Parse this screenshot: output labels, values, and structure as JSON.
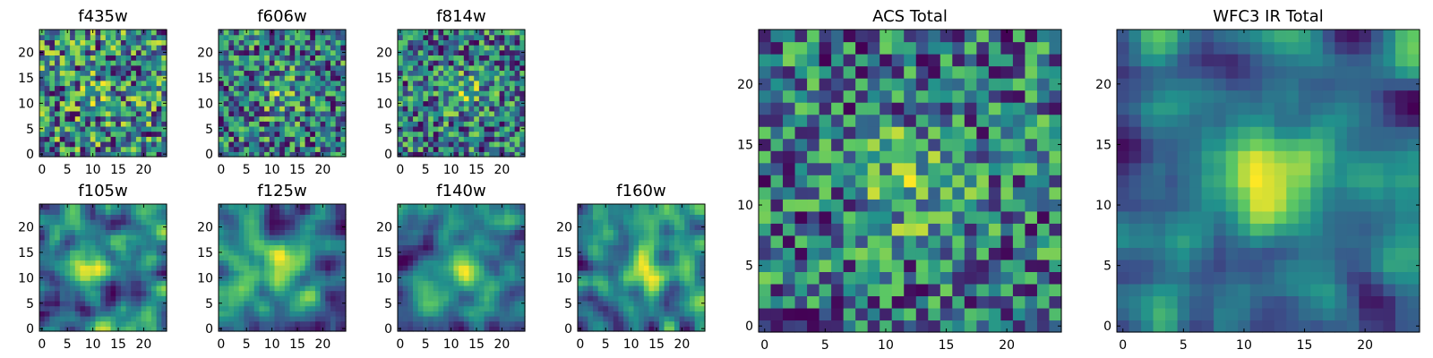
{
  "figure_caption": "",
  "colormap": {
    "name": "viridis",
    "stops": [
      "#440154",
      "#3b528b",
      "#21918c",
      "#5ec962",
      "#fde725"
    ]
  },
  "chart_data": [
    {
      "type": "heatmap",
      "title": "f435w",
      "grid_size": 25,
      "xlim": [
        0,
        24
      ],
      "ylim": [
        0,
        24
      ],
      "xticks": [
        0,
        5,
        10,
        15,
        20
      ],
      "yticks": [
        0,
        5,
        10,
        15,
        20
      ],
      "texture": "noisy",
      "center": [
        12,
        12
      ],
      "peak_strength": 0.12,
      "seed": 11
    },
    {
      "type": "heatmap",
      "title": "f606w",
      "grid_size": 25,
      "xlim": [
        0,
        24
      ],
      "ylim": [
        0,
        24
      ],
      "xticks": [
        0,
        5,
        10,
        15,
        20
      ],
      "yticks": [
        0,
        5,
        10,
        15,
        20
      ],
      "texture": "noisy",
      "center": [
        12,
        12
      ],
      "peak_strength": 0.25,
      "seed": 23
    },
    {
      "type": "heatmap",
      "title": "f814w",
      "grid_size": 25,
      "xlim": [
        0,
        24
      ],
      "ylim": [
        0,
        24
      ],
      "xticks": [
        0,
        5,
        10,
        15,
        20
      ],
      "yticks": [
        0,
        5,
        10,
        15,
        20
      ],
      "texture": "noisy",
      "center": [
        13,
        12
      ],
      "peak_strength": 0.25,
      "seed": 37
    },
    {
      "type": "heatmap",
      "title": "f105w",
      "grid_size": 25,
      "xlim": [
        0,
        24
      ],
      "ylim": [
        0,
        24
      ],
      "xticks": [
        0,
        5,
        10,
        15,
        20
      ],
      "yticks": [
        0,
        5,
        10,
        15,
        20
      ],
      "texture": "smooth",
      "center": [
        10,
        13
      ],
      "peak_strength": 0.45,
      "seed": 41
    },
    {
      "type": "heatmap",
      "title": "f125w",
      "grid_size": 25,
      "xlim": [
        0,
        24
      ],
      "ylim": [
        0,
        24
      ],
      "xticks": [
        0,
        5,
        10,
        15,
        20
      ],
      "yticks": [
        0,
        5,
        10,
        15,
        20
      ],
      "texture": "smooth",
      "center": [
        12,
        12
      ],
      "peak_strength": 0.45,
      "seed": 53
    },
    {
      "type": "heatmap",
      "title": "f140w",
      "grid_size": 25,
      "xlim": [
        0,
        24
      ],
      "ylim": [
        0,
        24
      ],
      "xticks": [
        0,
        5,
        10,
        15,
        20
      ],
      "yticks": [
        0,
        5,
        10,
        15,
        20
      ],
      "texture": "smooth",
      "center": [
        12,
        12
      ],
      "peak_strength": 0.45,
      "seed": 67
    },
    {
      "type": "heatmap",
      "title": "f160w",
      "grid_size": 25,
      "xlim": [
        0,
        24
      ],
      "ylim": [
        0,
        24
      ],
      "xticks": [
        0,
        5,
        10,
        15,
        20
      ],
      "yticks": [
        0,
        5,
        10,
        15,
        20
      ],
      "texture": "smooth",
      "center": [
        13,
        12
      ],
      "peak_strength": 0.5,
      "seed": 79
    },
    {
      "type": "heatmap",
      "title": "ACS Total",
      "grid_size": 25,
      "xlim": [
        0,
        24
      ],
      "ylim": [
        0,
        24
      ],
      "xticks": [
        0,
        5,
        10,
        15,
        20
      ],
      "yticks": [
        0,
        5,
        10,
        15,
        20
      ],
      "texture": "noisy",
      "center": [
        12,
        12
      ],
      "peak_strength": 0.3,
      "seed": 97
    },
    {
      "type": "heatmap",
      "title": "WFC3 IR Total",
      "grid_size": 25,
      "xlim": [
        0,
        24
      ],
      "ylim": [
        0,
        24
      ],
      "xticks": [
        0,
        5,
        10,
        15,
        20
      ],
      "yticks": [
        0,
        5,
        10,
        15,
        20
      ],
      "texture": "smooth",
      "center": [
        12,
        12
      ],
      "peak_strength": 0.55,
      "seed": 113
    }
  ]
}
